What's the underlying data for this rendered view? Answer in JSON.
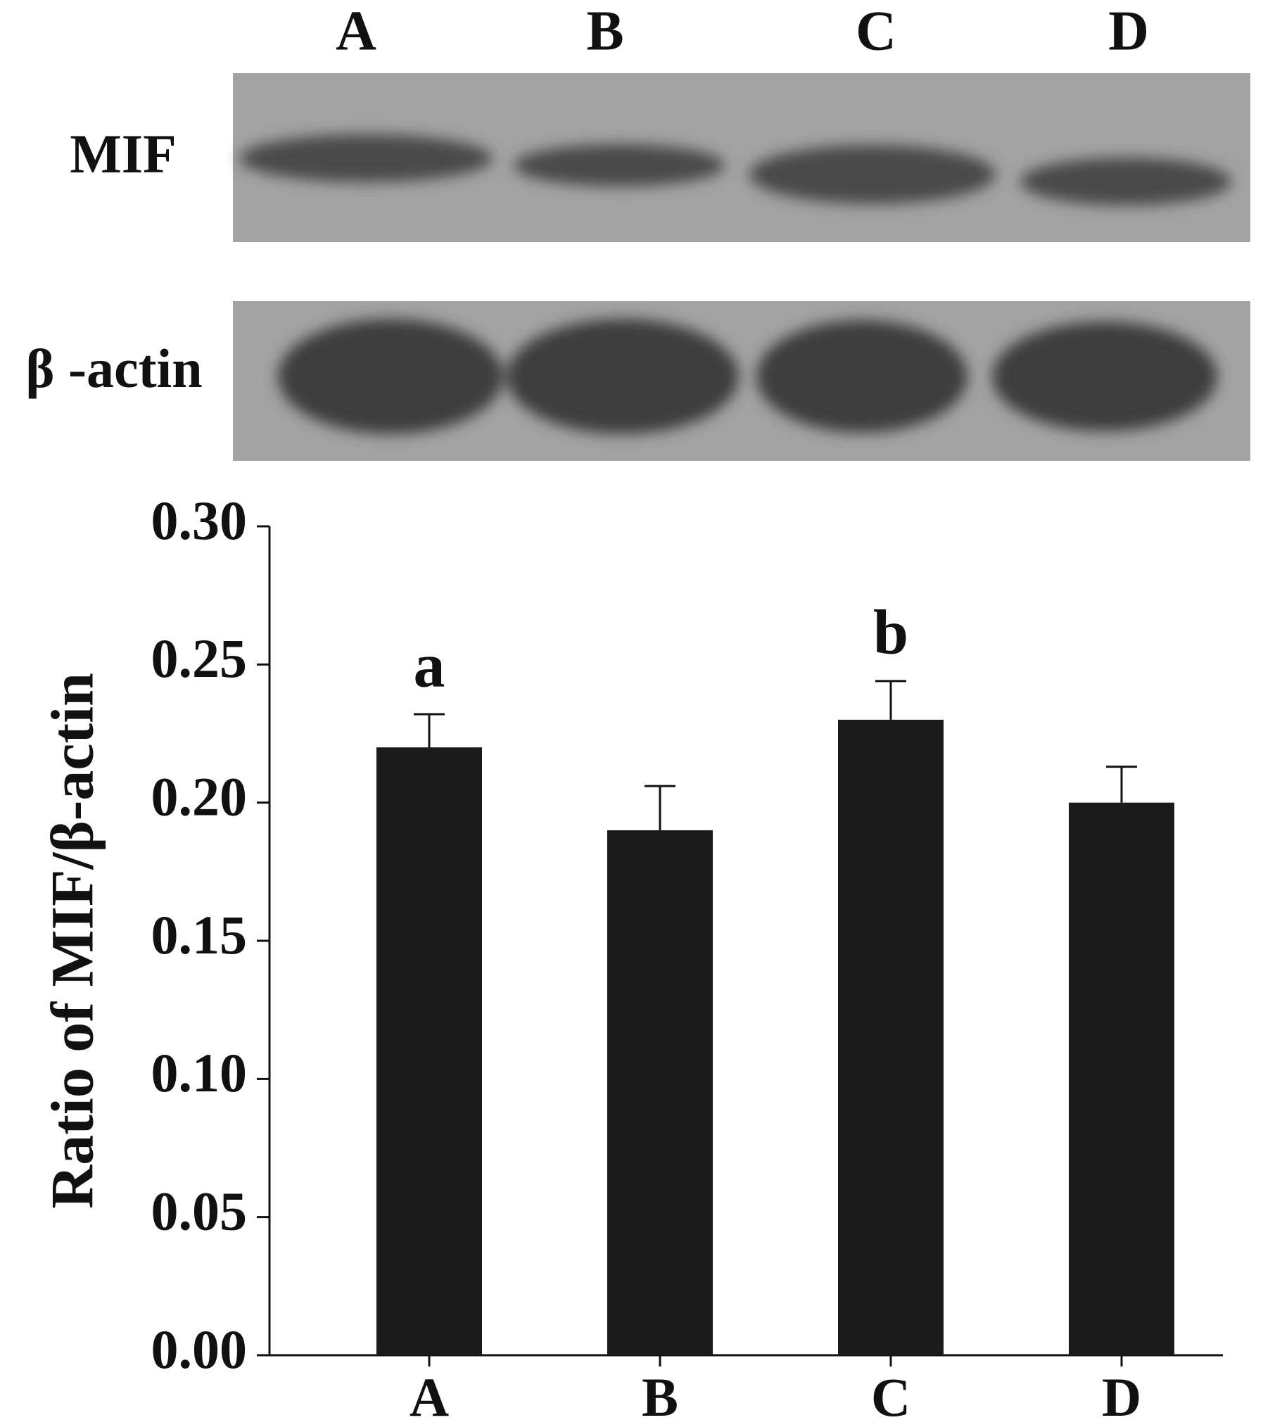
{
  "blot": {
    "lanes": [
      "A",
      "B",
      "C",
      "D"
    ],
    "rows": [
      "MIF",
      "β -actin"
    ]
  },
  "chart_data": {
    "type": "bar",
    "y_label": "Ratio of MIF/β-actin",
    "categories": [
      "A",
      "B",
      "C",
      "D"
    ],
    "values": [
      0.22,
      0.19,
      0.23,
      0.2
    ],
    "errors": [
      0.012,
      0.016,
      0.014,
      0.013
    ],
    "annotations": [
      "a",
      null,
      "b",
      null
    ],
    "color": "#1a1a1a",
    "ylim": [
      0,
      0.3
    ],
    "yticks": [
      {
        "value": 0,
        "label": "0.00"
      },
      0.05,
      {
        "value": 0.1,
        "label": "0.10"
      },
      0.15,
      {
        "value": 0.2,
        "label": "0.20"
      },
      0.25,
      {
        "value": 0.3,
        "label": "0.30"
      }
    ]
  }
}
